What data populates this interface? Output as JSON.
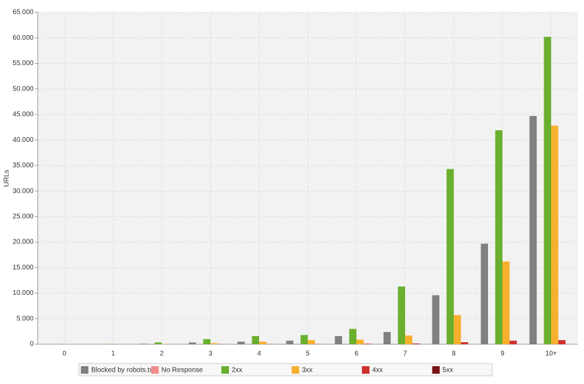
{
  "chart_data": {
    "type": "bar",
    "y_label": "URLs",
    "categories": [
      "0",
      "1",
      "2",
      "3",
      "4",
      "5",
      "6",
      "7",
      "8",
      "9",
      "10+"
    ],
    "series": [
      {
        "name": "Blocked by robots.txt",
        "color": "#808080",
        "values": [
          0,
          0,
          100,
          350,
          500,
          700,
          1600,
          2400,
          9600,
          19700,
          44700
        ]
      },
      {
        "name": "No Response",
        "color": "#f28b8b",
        "values": [
          0,
          0,
          0,
          0,
          0,
          0,
          0,
          0,
          0,
          0,
          0
        ]
      },
      {
        "name": "2xx",
        "color": "#6aaf2e",
        "values": [
          0,
          50,
          350,
          1000,
          1600,
          1800,
          3000,
          11300,
          34300,
          41900,
          60200
        ]
      },
      {
        "name": "3xx",
        "color": "#f7b02e",
        "values": [
          0,
          0,
          50,
          200,
          500,
          800,
          900,
          1700,
          5700,
          16200,
          42800
        ]
      },
      {
        "name": "4xx",
        "color": "#d0302d",
        "values": [
          0,
          0,
          0,
          20,
          50,
          50,
          100,
          150,
          400,
          700,
          800
        ]
      },
      {
        "name": "5xx",
        "color": "#7b1515",
        "values": [
          0,
          0,
          0,
          0,
          0,
          0,
          0,
          0,
          0,
          0,
          0
        ]
      }
    ],
    "ylim": [
      0,
      65000
    ],
    "yticks": [
      0,
      {
        "value": 5000,
        "label": "5.000"
      },
      {
        "value": 10000,
        "label": "10.000"
      },
      {
        "value": 15000,
        "label": "15.000"
      },
      {
        "value": 20000,
        "label": "20.000"
      },
      {
        "value": 25000,
        "label": "25.000"
      },
      {
        "value": 30000,
        "label": "30.000"
      },
      {
        "value": 35000,
        "label": "35.000"
      },
      {
        "value": 40000,
        "label": "40.000"
      },
      {
        "value": 45000,
        "label": "45.000"
      },
      {
        "value": 50000,
        "label": "50.000"
      },
      {
        "value": 55000,
        "label": "55.000"
      },
      {
        "value": 60000,
        "label": "60.000"
      },
      {
        "value": 65000,
        "label": "65.000"
      }
    ],
    "grid": true,
    "legend": "bottom"
  }
}
